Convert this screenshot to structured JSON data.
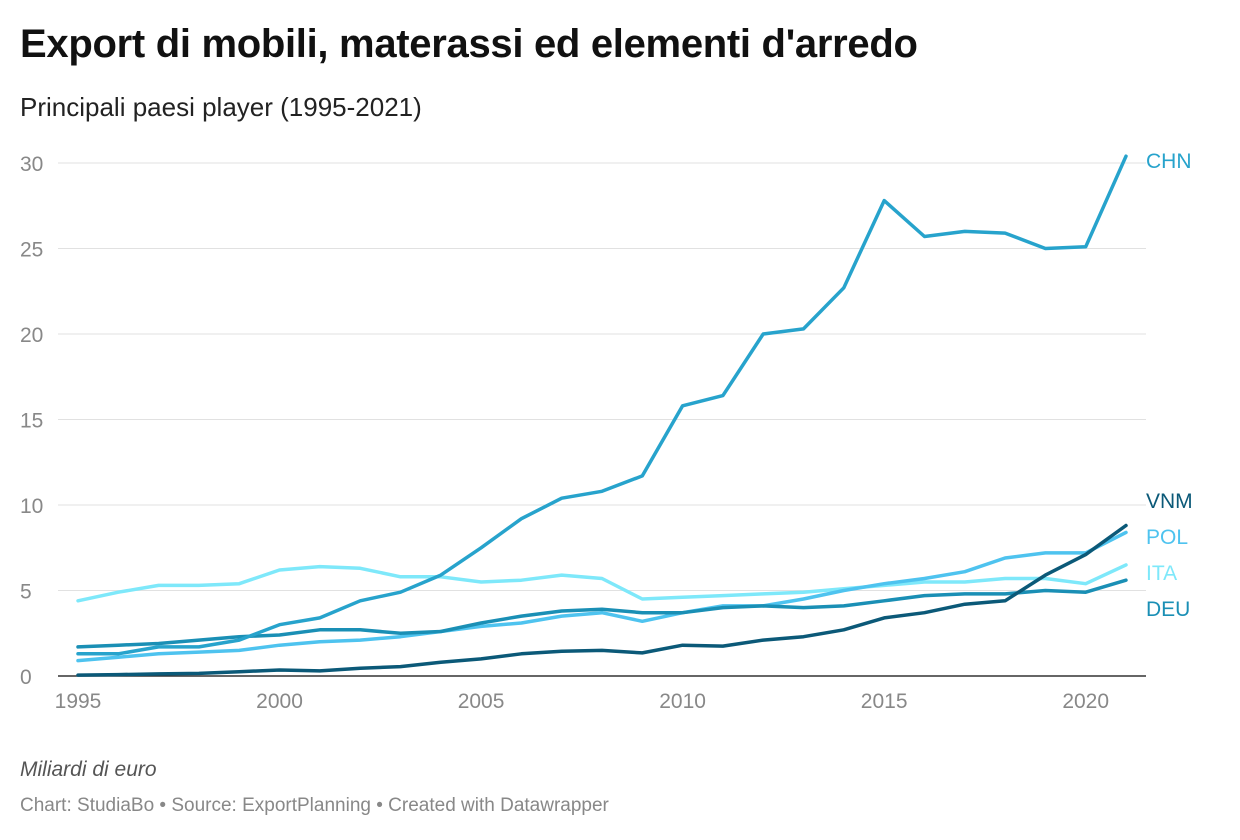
{
  "header": {
    "title": "Export di mobili, materassi ed elementi d'arredo",
    "subtitle": "Principali paesi player (1995-2021)"
  },
  "notes": {
    "unit": "Miliardi di euro",
    "footer": "Chart: StudiaBo • Source: ExportPlanning • Created with Datawrapper"
  },
  "chart_data": {
    "type": "line",
    "title": "Export di mobili, materassi ed elementi d'arredo",
    "subtitle": "Principali paesi player (1995-2021)",
    "xlabel": "",
    "ylabel": "Miliardi di euro",
    "xlim": [
      1995,
      2021
    ],
    "ylim": [
      0,
      30
    ],
    "x_ticks": [
      1995,
      2000,
      2005,
      2010,
      2015,
      2020
    ],
    "y_ticks": [
      0,
      5,
      10,
      15,
      20,
      25,
      30
    ],
    "grid": "horizontal",
    "legend": "direct labels at line ends (right)",
    "x": [
      1995,
      1996,
      1997,
      1998,
      1999,
      2000,
      2001,
      2002,
      2003,
      2004,
      2005,
      2006,
      2007,
      2008,
      2009,
      2010,
      2011,
      2012,
      2013,
      2014,
      2015,
      2016,
      2017,
      2018,
      2019,
      2020,
      2021
    ],
    "series": [
      {
        "name": "ITA",
        "color": "#7ee8fa",
        "values": [
          4.4,
          4.9,
          5.3,
          5.3,
          5.4,
          6.2,
          6.4,
          6.3,
          5.8,
          5.8,
          5.5,
          5.6,
          5.9,
          5.7,
          4.5,
          4.6,
          4.7,
          4.8,
          4.9,
          5.1,
          5.3,
          5.5,
          5.5,
          5.7,
          5.7,
          5.4,
          6.5
        ]
      },
      {
        "name": "POL",
        "color": "#4ec3ef",
        "values": [
          0.9,
          1.1,
          1.3,
          1.4,
          1.5,
          1.8,
          2.0,
          2.1,
          2.3,
          2.6,
          2.9,
          3.1,
          3.5,
          3.7,
          3.2,
          3.7,
          4.1,
          4.1,
          4.5,
          5.0,
          5.4,
          5.7,
          6.1,
          6.9,
          7.2,
          7.2,
          8.4
        ]
      },
      {
        "name": "DEU",
        "color": "#1a8fb5",
        "values": [
          1.7,
          1.8,
          1.9,
          2.1,
          2.3,
          2.4,
          2.7,
          2.7,
          2.5,
          2.6,
          3.1,
          3.5,
          3.8,
          3.9,
          3.7,
          3.7,
          4.0,
          4.1,
          4.0,
          4.1,
          4.4,
          4.7,
          4.8,
          4.8,
          5.0,
          4.9,
          5.6
        ]
      },
      {
        "name": "VNM",
        "color": "#0b5978",
        "values": [
          0.05,
          0.08,
          0.12,
          0.15,
          0.25,
          0.35,
          0.3,
          0.45,
          0.55,
          0.8,
          1.0,
          1.3,
          1.45,
          1.5,
          1.35,
          1.8,
          1.75,
          2.1,
          2.3,
          2.7,
          3.4,
          3.7,
          4.2,
          4.4,
          5.9,
          7.1,
          8.8
        ]
      },
      {
        "name": "CHN",
        "color": "#27a3cc",
        "values": [
          1.3,
          1.3,
          1.7,
          1.7,
          2.1,
          3.0,
          3.4,
          4.4,
          4.9,
          5.9,
          7.5,
          9.2,
          10.4,
          10.8,
          11.7,
          15.8,
          16.4,
          20.0,
          20.3,
          22.7,
          27.8,
          25.7,
          26.0,
          25.9,
          25.0,
          25.1,
          30.4
        ]
      }
    ]
  }
}
